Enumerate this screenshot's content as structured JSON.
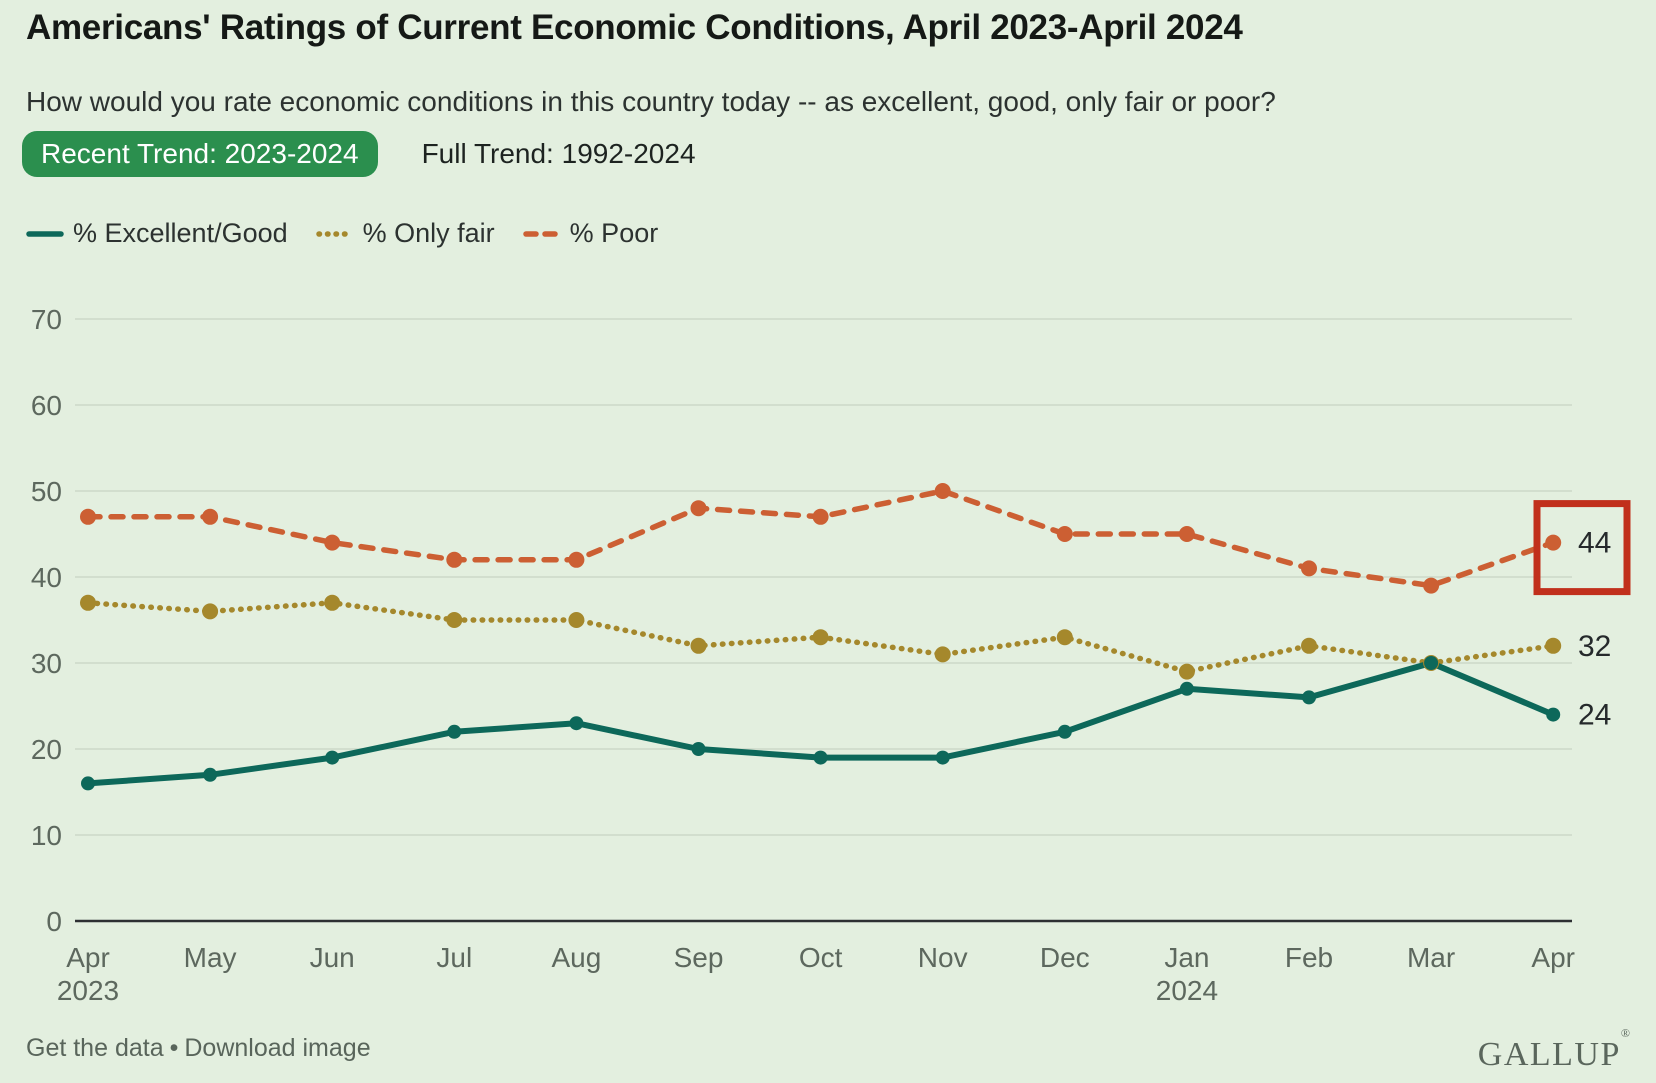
{
  "title": "Americans' Ratings of Current Economic Conditions, April 2023-April 2024",
  "question": "How would you rate economic conditions in this country today -- as excellent, good, only fair or poor?",
  "tabs": {
    "recent": {
      "label": "Recent Trend: 2023-2024",
      "active": true
    },
    "full": {
      "label": "Full Trend: 1992-2024",
      "active": false
    }
  },
  "footer": {
    "get_data_label": "Get the data",
    "separator": "•",
    "download_label": "Download image",
    "brand": "GALLUP",
    "brand_mark": "®"
  },
  "colors": {
    "background": "#e3efdf",
    "excellent_good": "#0d685a",
    "only_fair": "#a5882c",
    "poor": "#cc5f33",
    "highlight_box": "#c1301c",
    "active_tab_green": "#2b8f4e",
    "gridline": "#cfdccb",
    "axis_line": "#2d3033",
    "axis_text": "#5d685e",
    "end_label_text": "#25292b"
  },
  "chart_data": {
    "type": "line",
    "x": [
      "Apr",
      "May",
      "Jun",
      "Jul",
      "Aug",
      "Sep",
      "Oct",
      "Nov",
      "Dec",
      "Jan",
      "Feb",
      "Mar",
      "Apr"
    ],
    "x_year_labels": [
      {
        "index": 0,
        "label": "2023"
      },
      {
        "index": 9,
        "label": "2024"
      }
    ],
    "series": [
      {
        "name": "% Excellent/Good",
        "line_style": "solid",
        "color": "#0d685a",
        "values": [
          16,
          17,
          19,
          22,
          23,
          20,
          19,
          19,
          22,
          27,
          26,
          30,
          24
        ],
        "end_label": "24"
      },
      {
        "name": "% Only fair",
        "line_style": "dotted",
        "color": "#a5882c",
        "values": [
          37,
          36,
          37,
          35,
          35,
          32,
          33,
          31,
          33,
          29,
          32,
          30,
          32
        ],
        "end_label": "32"
      },
      {
        "name": "% Poor",
        "line_style": "dashed",
        "color": "#cc5f33",
        "values": [
          47,
          47,
          44,
          42,
          42,
          48,
          47,
          50,
          45,
          45,
          41,
          39,
          44
        ],
        "end_label": "44"
      }
    ],
    "ylim": [
      0,
      70
    ],
    "yticks": [
      0,
      10,
      20,
      30,
      40,
      50,
      60,
      70
    ],
    "grid": true,
    "legend_position": "top-left",
    "annotation": {
      "type": "highlight-box",
      "series": "% Poor",
      "category_index": 12,
      "value": 44,
      "color": "#c1301c"
    }
  }
}
